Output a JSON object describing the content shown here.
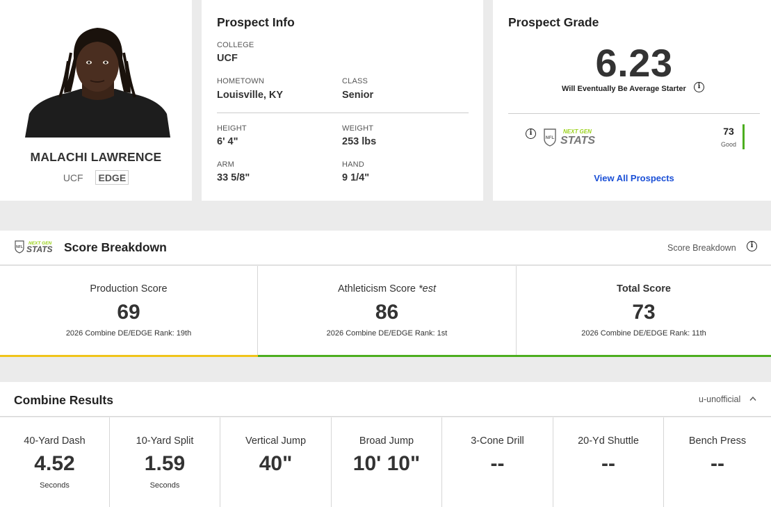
{
  "player": {
    "name": "MALACHI LAWRENCE",
    "college": "UCF",
    "position": "EDGE"
  },
  "prospect_info": {
    "title": "Prospect Info",
    "college_label": "COLLEGE",
    "college": "UCF",
    "hometown_label": "HOMETOWN",
    "hometown": "Louisville, KY",
    "class_label": "CLASS",
    "class": "Senior",
    "height_label": "HEIGHT",
    "height": "6' 4\"",
    "weight_label": "WEIGHT",
    "weight": "253 lbs",
    "arm_label": "ARM",
    "arm": "33 5/8\"",
    "hand_label": "HAND",
    "hand": "9 1/4\""
  },
  "grade": {
    "title": "Prospect Grade",
    "value": "6.23",
    "description": "Will Eventually Be Average Starter",
    "ngs_score": "73",
    "ngs_rating": "Good",
    "ngs_rating_color": "#4cae1f",
    "view_all": "View All Prospects"
  },
  "ngs_logo": {
    "top": "NEXT GEN",
    "bottom": "STATS"
  },
  "score_breakdown": {
    "title": "Score Breakdown",
    "link": "Score Breakdown",
    "production": {
      "label": "Production Score",
      "value": "69",
      "rank": "2026 Combine DE/EDGE Rank: 19th",
      "color": "#f0c419"
    },
    "athleticism": {
      "label": "Athleticism Score",
      "label_suffix": "*est",
      "value": "86",
      "rank": "2026 Combine DE/EDGE Rank: 1st",
      "color": "#4cae1f"
    },
    "total": {
      "label": "Total Score",
      "value": "73",
      "rank": "2026 Combine DE/EDGE Rank: 11th",
      "color": "#4cae1f"
    }
  },
  "combine": {
    "title": "Combine Results",
    "legend": "u-unofficial",
    "results": [
      {
        "label": "40-Yard Dash",
        "value": "4.52",
        "unit": "Seconds"
      },
      {
        "label": "10-Yard Split",
        "value": "1.59",
        "unit": "Seconds"
      },
      {
        "label": "Vertical Jump",
        "value": "40\"",
        "unit": ""
      },
      {
        "label": "Broad Jump",
        "value": "10' 10\"",
        "unit": ""
      },
      {
        "label": "3-Cone Drill",
        "value": "--",
        "unit": ""
      },
      {
        "label": "20-Yd Shuttle",
        "value": "--",
        "unit": ""
      },
      {
        "label": "Bench Press",
        "value": "--",
        "unit": ""
      }
    ]
  }
}
